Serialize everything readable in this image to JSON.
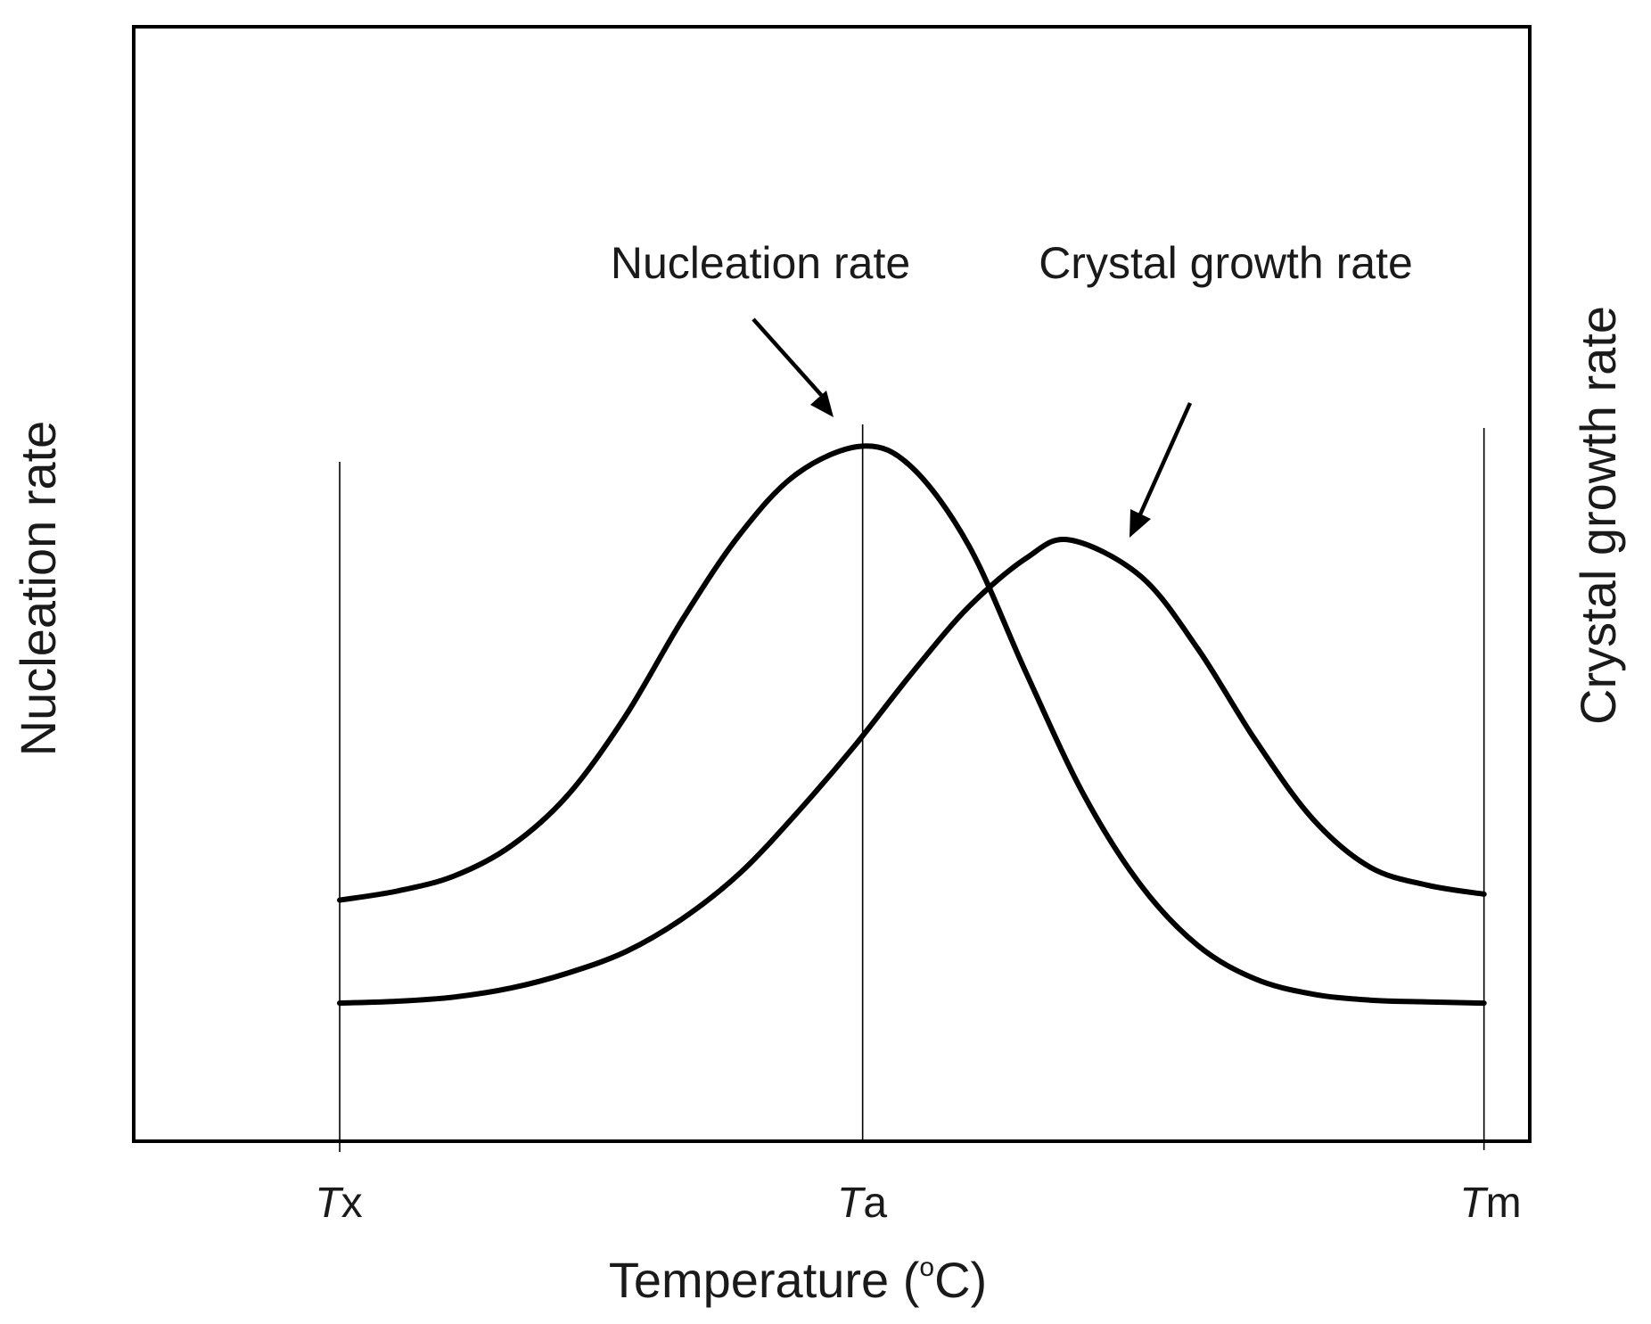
{
  "chart_data": {
    "type": "line",
    "title": "",
    "xlabel_prefix": "Temperature (",
    "xlabel_sup": "o",
    "xlabel_suffix": "C)",
    "ylabel_left": "Nucleation rate",
    "ylabel_right": "Crystal growth rate",
    "xlim": [
      -0.18,
      1.04
    ],
    "ylim": [
      0,
      1
    ],
    "x_ticks": [
      {
        "x": 0.0,
        "italic": "T",
        "sub": "x"
      },
      {
        "x": 0.457,
        "italic": "T",
        "sub": "a"
      },
      {
        "x": 1.0,
        "italic": "T",
        "sub": "m"
      }
    ],
    "series": [
      {
        "name": "Nucleation rate",
        "x": [
          0,
          0.05,
          0.1,
          0.15,
          0.2,
          0.25,
          0.3,
          0.35,
          0.4,
          0.457,
          0.5,
          0.55,
          0.6,
          0.65,
          0.7,
          0.75,
          0.8,
          0.85,
          0.9,
          0.95,
          1.0
        ],
        "y": [
          0.245,
          0.26,
          0.285,
          0.335,
          0.42,
          0.55,
          0.71,
          0.85,
          0.95,
          0.995,
          0.96,
          0.83,
          0.62,
          0.42,
          0.27,
          0.17,
          0.115,
          0.09,
          0.08,
          0.077,
          0.075
        ]
      },
      {
        "name": "Crystal growth rate",
        "x": [
          0,
          0.05,
          0.1,
          0.15,
          0.2,
          0.25,
          0.3,
          0.35,
          0.4,
          0.45,
          0.5,
          0.55,
          0.6,
          0.638,
          0.7,
          0.75,
          0.8,
          0.85,
          0.9,
          0.95,
          1.0
        ],
        "y": [
          0.075,
          0.078,
          0.085,
          0.1,
          0.125,
          0.16,
          0.215,
          0.29,
          0.39,
          0.5,
          0.62,
          0.73,
          0.81,
          0.84,
          0.78,
          0.66,
          0.51,
          0.38,
          0.3,
          0.27,
          0.255
        ]
      }
    ],
    "annotations": [
      {
        "text": "Nucleation rate",
        "points_to_series": 0
      },
      {
        "text": "Crystal growth rate",
        "points_to_series": 1
      }
    ],
    "grid": false,
    "legend": "none"
  }
}
